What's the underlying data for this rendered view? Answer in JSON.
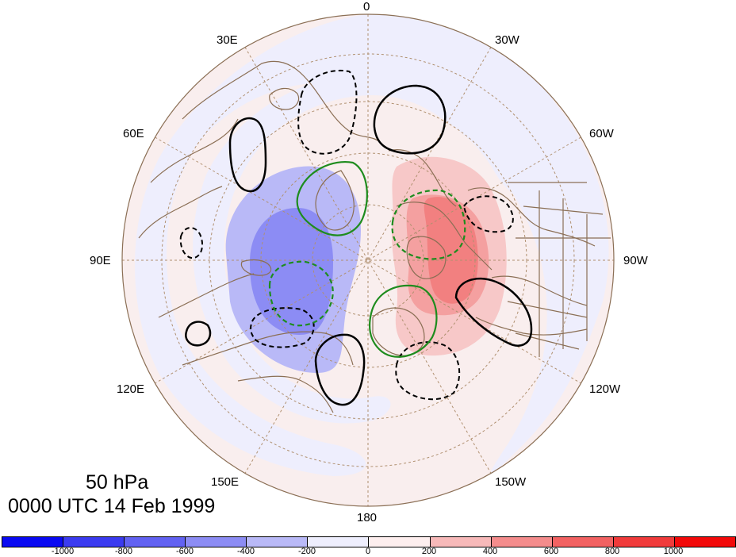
{
  "map": {
    "level_label": "50 hPa",
    "time_label": "0000 UTC 14 Feb 1999",
    "longitude_labels": [
      "0",
      "30W",
      "60W",
      "90W",
      "120W",
      "150W",
      "180",
      "150E",
      "120E",
      "90E",
      "60E",
      "30E"
    ],
    "colorbar": {
      "colors": [
        "#0a0af2",
        "#3b3bf0",
        "#6262f2",
        "#8c8cf4",
        "#b9b9f7",
        "#eeeefd",
        "#fdeeee",
        "#f7b9b9",
        "#f48c8c",
        "#f26262",
        "#f03b3b",
        "#f20a0a"
      ],
      "tick_labels": [
        "-1000",
        "-800",
        "-600",
        "-400",
        "-200",
        "0",
        "200",
        "400",
        "600",
        "800",
        "1000"
      ]
    },
    "colors": {
      "coastline": "#8b6f55",
      "graticule": "#b09070",
      "solid_contour": "#000000",
      "dashed_contour": "#000000",
      "green_contour": "#1e8c1e"
    }
  }
}
